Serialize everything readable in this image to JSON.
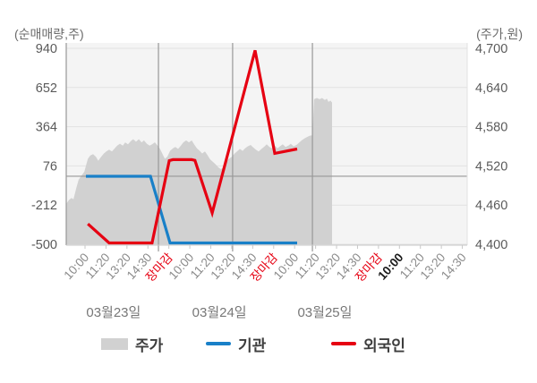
{
  "chart_data": {
    "type": "combo-area-line",
    "left_axis": {
      "title": "(순매매량,주)",
      "min": -500,
      "max": 940,
      "ticks": [
        "940",
        "652",
        "364",
        "76",
        "-212",
        "-500"
      ],
      "tick_values": [
        940,
        652,
        364,
        76,
        -212,
        -500
      ]
    },
    "right_axis": {
      "title": "(주가,원)",
      "min": 4400,
      "max": 4700,
      "ticks": [
        "4,700",
        "4,640",
        "4,580",
        "4,520",
        "4,460",
        "4,400"
      ],
      "tick_values": [
        4700,
        4640,
        4580,
        4520,
        4460,
        4400
      ]
    },
    "x_axis": {
      "labels": [
        {
          "text": "10:00",
          "style": "normal"
        },
        {
          "text": "11:20",
          "style": "normal"
        },
        {
          "text": "13:20",
          "style": "normal"
        },
        {
          "text": "14:30",
          "style": "normal"
        },
        {
          "text": "장마감",
          "style": "close"
        },
        {
          "text": "10:00",
          "style": "normal"
        },
        {
          "text": "11:20",
          "style": "normal"
        },
        {
          "text": "13:20",
          "style": "normal"
        },
        {
          "text": "14:30",
          "style": "normal"
        },
        {
          "text": "장마감",
          "style": "close"
        },
        {
          "text": "10:00",
          "style": "normal"
        },
        {
          "text": "11:20",
          "style": "normal"
        },
        {
          "text": "13:20",
          "style": "normal"
        },
        {
          "text": "14:30",
          "style": "normal"
        },
        {
          "text": "장마감",
          "style": "close"
        },
        {
          "text": "10:00",
          "style": "current"
        },
        {
          "text": "11:20",
          "style": "normal"
        },
        {
          "text": "13:20",
          "style": "normal"
        },
        {
          "text": "14:30",
          "style": "normal"
        }
      ],
      "dates": [
        {
          "text": "03월23일",
          "pos": 0.118
        },
        {
          "text": "03월24일",
          "pos": 0.382
        },
        {
          "text": "03월25일",
          "pos": 0.645
        }
      ],
      "day_separators": [
        0.23,
        0.415,
        0.614
      ]
    },
    "zero_line_left_value": 0,
    "colors": {
      "price_fill": "#d1d1d1",
      "institution": "#1980c8",
      "foreigner": "#e60012",
      "grid": "#e2e2e2",
      "axis_dark": "#989898",
      "axis_light": "#c8c8c8",
      "label_gray": "#8a8a8a",
      "label_close": "#e60012",
      "label_current": "#1a1a1a",
      "tick_text": "#5a5a5a",
      "date_text": "#777777"
    },
    "series": [
      {
        "name": "주가",
        "type": "area",
        "axis": "right",
        "color": "#d1d1d1",
        "points": [
          [
            0.0,
            4462
          ],
          [
            0.007,
            4468
          ],
          [
            0.013,
            4471
          ],
          [
            0.018,
            4469
          ],
          [
            0.025,
            4486
          ],
          [
            0.031,
            4499
          ],
          [
            0.038,
            4505
          ],
          [
            0.045,
            4511
          ],
          [
            0.049,
            4520
          ],
          [
            0.054,
            4531
          ],
          [
            0.06,
            4536
          ],
          [
            0.067,
            4538
          ],
          [
            0.074,
            4534
          ],
          [
            0.08,
            4528
          ],
          [
            0.087,
            4534
          ],
          [
            0.094,
            4539
          ],
          [
            0.1,
            4542
          ],
          [
            0.107,
            4545
          ],
          [
            0.114,
            4542
          ],
          [
            0.121,
            4547
          ],
          [
            0.127,
            4551
          ],
          [
            0.134,
            4554
          ],
          [
            0.141,
            4551
          ],
          [
            0.147,
            4556
          ],
          [
            0.154,
            4553
          ],
          [
            0.161,
            4558
          ],
          [
            0.167,
            4561
          ],
          [
            0.174,
            4557
          ],
          [
            0.181,
            4561
          ],
          [
            0.188,
            4556
          ],
          [
            0.194,
            4559
          ],
          [
            0.201,
            4554
          ],
          [
            0.208,
            4551
          ],
          [
            0.214,
            4553
          ],
          [
            0.221,
            4556
          ],
          [
            0.228,
            4551
          ],
          [
            0.234,
            4546
          ],
          [
            0.241,
            4537
          ],
          [
            0.246,
            4531
          ],
          [
            0.252,
            4534
          ],
          [
            0.259,
            4543
          ],
          [
            0.266,
            4547
          ],
          [
            0.272,
            4549
          ],
          [
            0.279,
            4546
          ],
          [
            0.286,
            4551
          ],
          [
            0.292,
            4556
          ],
          [
            0.299,
            4559
          ],
          [
            0.306,
            4556
          ],
          [
            0.313,
            4559
          ],
          [
            0.319,
            4553
          ],
          [
            0.326,
            4547
          ],
          [
            0.333,
            4543
          ],
          [
            0.339,
            4539
          ],
          [
            0.346,
            4542
          ],
          [
            0.353,
            4536
          ],
          [
            0.359,
            4530
          ],
          [
            0.366,
            4526
          ],
          [
            0.373,
            4522
          ],
          [
            0.379,
            4518
          ],
          [
            0.386,
            4515
          ],
          [
            0.393,
            4519
          ],
          [
            0.4,
            4527
          ],
          [
            0.406,
            4531
          ],
          [
            0.413,
            4534
          ],
          [
            0.42,
            4539
          ],
          [
            0.426,
            4542
          ],
          [
            0.433,
            4546
          ],
          [
            0.44,
            4543
          ],
          [
            0.446,
            4547
          ],
          [
            0.453,
            4550
          ],
          [
            0.46,
            4552
          ],
          [
            0.467,
            4548
          ],
          [
            0.473,
            4545
          ],
          [
            0.48,
            4542
          ],
          [
            0.487,
            4546
          ],
          [
            0.493,
            4549
          ],
          [
            0.5,
            4553
          ],
          [
            0.507,
            4549
          ],
          [
            0.513,
            4547
          ],
          [
            0.52,
            4551
          ],
          [
            0.527,
            4547
          ],
          [
            0.533,
            4550
          ],
          [
            0.54,
            4553
          ],
          [
            0.547,
            4549
          ],
          [
            0.554,
            4551
          ],
          [
            0.56,
            4554
          ],
          [
            0.567,
            4550
          ],
          [
            0.574,
            4552
          ],
          [
            0.58,
            4555
          ],
          [
            0.587,
            4559
          ],
          [
            0.594,
            4562
          ],
          [
            0.6,
            4564
          ],
          [
            0.607,
            4566
          ],
          [
            0.614,
            4567
          ],
          [
            0.618,
            4622
          ],
          [
            0.625,
            4624
          ],
          [
            0.632,
            4622
          ],
          [
            0.638,
            4624
          ],
          [
            0.645,
            4621
          ],
          [
            0.65,
            4623
          ],
          [
            0.654,
            4618
          ],
          [
            0.659,
            4620
          ],
          [
            0.663,
            4617
          ]
        ]
      },
      {
        "name": "기관",
        "type": "line",
        "axis": "left",
        "color": "#1980c8",
        "points": [
          [
            0.049,
            0
          ],
          [
            0.21,
            0
          ],
          [
            0.259,
            -500
          ],
          [
            0.576,
            -500
          ]
        ]
      },
      {
        "name": "외국인",
        "type": "line",
        "axis": "left",
        "color": "#e60012",
        "points": [
          [
            0.054,
            -350
          ],
          [
            0.107,
            -500
          ],
          [
            0.214,
            -500
          ],
          [
            0.257,
            115
          ],
          [
            0.266,
            122
          ],
          [
            0.313,
            122
          ],
          [
            0.321,
            117
          ],
          [
            0.364,
            -270
          ],
          [
            0.471,
            925
          ],
          [
            0.52,
            168
          ],
          [
            0.576,
            200
          ]
        ]
      }
    ]
  }
}
